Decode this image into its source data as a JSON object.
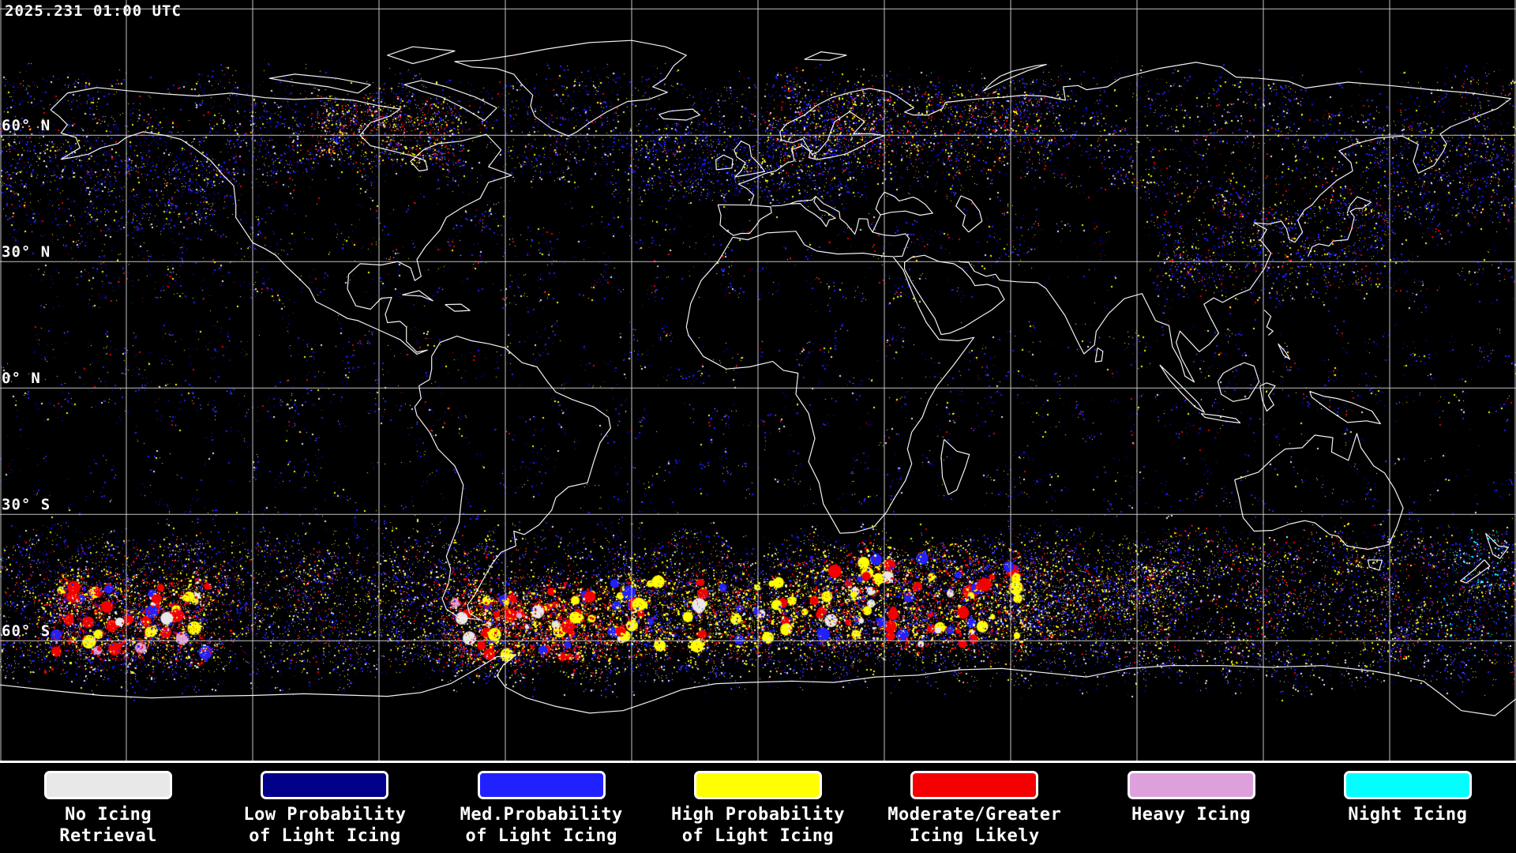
{
  "header": {
    "timestamp": "2025.231 01:00 UTC"
  },
  "map": {
    "background": "#000000",
    "coastline_color": "#ffffff",
    "graticule": {
      "lon_step_deg": 30,
      "lat_step_deg": 30,
      "color": "#d8d8d8",
      "lat_lines": [
        90,
        60,
        30,
        0,
        -30,
        -60
      ]
    },
    "latitude_labels": [
      {
        "text": "60° N",
        "lat": 60
      },
      {
        "text": "30° N",
        "lat": 30
      },
      {
        "text": "0° N",
        "lat": 0
      },
      {
        "text": "30° S",
        "lat": -30
      },
      {
        "text": "60° S",
        "lat": -60
      }
    ]
  },
  "palette": {
    "white": "#e8e8e8",
    "navy": "#00008a",
    "blue": "#2121ff",
    "yellow": "#ffff00",
    "red": "#f40000",
    "pink": "#dda0dd",
    "cyan": "#00ffff"
  },
  "legend": {
    "items": [
      {
        "name": "no-icing-retrieval",
        "color": "#e8e8e8",
        "label_lines": [
          "No Icing",
          "Retrieval"
        ]
      },
      {
        "name": "low-prob-light-icing",
        "color": "#00008a",
        "label_lines": [
          "Low Probability",
          "of Light Icing"
        ]
      },
      {
        "name": "med-prob-light-icing",
        "color": "#2121ff",
        "label_lines": [
          "Med.Probability",
          "of Light Icing"
        ]
      },
      {
        "name": "high-prob-light-icing",
        "color": "#ffff00",
        "label_lines": [
          "High Probability",
          "of Light Icing"
        ]
      },
      {
        "name": "moderate-greater-icing",
        "color": "#f40000",
        "label_lines": [
          "Moderate/Greater",
          "Icing Likely"
        ]
      },
      {
        "name": "heavy-icing",
        "color": "#dda0dd",
        "label_lines": [
          "Heavy Icing"
        ]
      },
      {
        "name": "night-icing",
        "color": "#00ffff",
        "label_lines": [
          "Night Icing"
        ]
      }
    ]
  },
  "render": {
    "seed": 20250231
  },
  "icing_regions": [
    {
      "name": "north-polar-band",
      "lat": [
        48,
        74
      ],
      "lon": [
        -180,
        180
      ],
      "n": 950,
      "spread": 11,
      "dots": 12,
      "size": 2,
      "colors": {
        "blue": 38,
        "navy": 24,
        "white": 12,
        "yellow": 16,
        "red": 8,
        "pink": 2
      }
    },
    {
      "name": "hudson-bay-cluster",
      "lat": [
        54,
        68
      ],
      "lon": [
        -105,
        -72
      ],
      "n": 140,
      "spread": 10,
      "dots": 14,
      "size": 2,
      "colors": {
        "yellow": 30,
        "red": 26,
        "blue": 28,
        "white": 8,
        "pink": 8
      }
    },
    {
      "name": "scandinavia-russia",
      "lat": [
        54,
        70
      ],
      "lon": [
        5,
        70
      ],
      "n": 240,
      "spread": 11,
      "dots": 14,
      "size": 2,
      "colors": {
        "yellow": 26,
        "red": 22,
        "blue": 34,
        "navy": 10,
        "white": 8
      }
    },
    {
      "name": "north-atlantic-europe",
      "lat": [
        44,
        62
      ],
      "lon": [
        -35,
        25
      ],
      "n": 200,
      "spread": 10,
      "dots": 12,
      "size": 2,
      "colors": {
        "blue": 48,
        "navy": 28,
        "white": 10,
        "yellow": 12,
        "red": 2
      }
    },
    {
      "name": "north-pacific-west",
      "lat": [
        38,
        60
      ],
      "lon": [
        145,
        180
      ],
      "n": 120,
      "spread": 10,
      "dots": 12,
      "size": 2,
      "colors": {
        "blue": 45,
        "navy": 25,
        "yellow": 15,
        "white": 10,
        "red": 5
      }
    },
    {
      "name": "north-pacific-east",
      "lat": [
        38,
        60
      ],
      "lon": [
        -180,
        -125
      ],
      "n": 160,
      "spread": 10,
      "dots": 12,
      "size": 2,
      "colors": {
        "blue": 45,
        "navy": 25,
        "yellow": 15,
        "white": 10,
        "red": 5
      }
    },
    {
      "name": "northern-midlatitudes",
      "lat": [
        20,
        44
      ],
      "lon": [
        -180,
        180
      ],
      "n": 380,
      "spread": 8,
      "dots": 9,
      "size": 2,
      "colors": {
        "blue": 42,
        "navy": 22,
        "yellow": 18,
        "white": 8,
        "red": 10
      }
    },
    {
      "name": "east-asia",
      "lat": [
        24,
        48
      ],
      "lon": [
        95,
        150
      ],
      "n": 220,
      "spread": 10,
      "dots": 11,
      "size": 2,
      "colors": {
        "blue": 40,
        "navy": 16,
        "yellow": 22,
        "red": 14,
        "white": 8
      }
    },
    {
      "name": "tropics",
      "lat": [
        -12,
        14
      ],
      "lon": [
        -180,
        180
      ],
      "n": 360,
      "spread": 8,
      "dots": 9,
      "size": 2,
      "colors": {
        "blue": 48,
        "navy": 20,
        "yellow": 16,
        "red": 8,
        "white": 8
      }
    },
    {
      "name": "southern-subtropics",
      "lat": [
        -36,
        -16
      ],
      "lon": [
        -180,
        180
      ],
      "n": 230,
      "spread": 8,
      "dots": 9,
      "size": 2,
      "colors": {
        "blue": 50,
        "navy": 26,
        "yellow": 14,
        "white": 10
      }
    },
    {
      "name": "southern-storm-track",
      "lat": [
        -65,
        -36
      ],
      "lon": [
        -180,
        180
      ],
      "n": 1900,
      "spread": 13,
      "dots": 15,
      "size": 2,
      "colors": {
        "blue": 38,
        "navy": 13,
        "white": 14,
        "yellow": 21,
        "red": 12,
        "pink": 2
      }
    },
    {
      "name": "southeast-pacific-red",
      "lat": [
        -63,
        -46
      ],
      "lon": [
        -168,
        -130
      ],
      "n": 280,
      "spread": 13,
      "dots": 20,
      "size": 3,
      "colors": {
        "red": 44,
        "yellow": 26,
        "blue": 18,
        "white": 8,
        "pink": 4
      }
    },
    {
      "name": "south-atlantic-red",
      "lat": [
        -64,
        -48
      ],
      "lon": [
        -72,
        -36
      ],
      "n": 300,
      "spread": 13,
      "dots": 20,
      "size": 3,
      "colors": {
        "red": 45,
        "yellow": 28,
        "blue": 16,
        "white": 7,
        "pink": 4
      }
    },
    {
      "name": "mid-atlantic-yellow",
      "lat": [
        -62,
        -46
      ],
      "lon": [
        -36,
        12
      ],
      "n": 260,
      "spread": 13,
      "dots": 17,
      "size": 3,
      "colors": {
        "yellow": 44,
        "red": 22,
        "blue": 24,
        "white": 10
      }
    },
    {
      "name": "indian-ocean-red",
      "lat": [
        -61,
        -40
      ],
      "lon": [
        12,
        62
      ],
      "n": 380,
      "spread": 13,
      "dots": 18,
      "size": 3,
      "colors": {
        "yellow": 34,
        "red": 30,
        "blue": 26,
        "white": 10
      }
    },
    {
      "name": "indian-ocean-yellow",
      "lat": [
        -58,
        -42
      ],
      "lon": [
        62,
        100
      ],
      "n": 200,
      "spread": 12,
      "dots": 14,
      "size": 2,
      "colors": {
        "yellow": 28,
        "red": 14,
        "blue": 42,
        "white": 16
      }
    },
    {
      "name": "antarctic-fringe",
      "lat": [
        -71,
        -63
      ],
      "lon": [
        -180,
        180
      ],
      "n": 320,
      "spread": 9,
      "dots": 9,
      "size": 2,
      "colors": {
        "white": 30,
        "blue": 40,
        "navy": 22,
        "yellow": 8
      }
    },
    {
      "name": "night-region",
      "lat": [
        -64,
        -34
      ],
      "lon": [
        162,
        179
      ],
      "n": 80,
      "spread": 9,
      "dots": 8,
      "size": 2,
      "colors": {
        "cyan": 25,
        "blue": 45,
        "navy": 20,
        "white": 10
      }
    },
    {
      "name": "sparse-global-noise",
      "lat": [
        -70,
        75
      ],
      "lon": [
        -180,
        180
      ],
      "n": 300,
      "spread": 5,
      "dots": 4,
      "size": 1,
      "colors": {
        "blue": 40,
        "white": 25,
        "navy": 20,
        "yellow": 10,
        "red": 5
      }
    }
  ]
}
